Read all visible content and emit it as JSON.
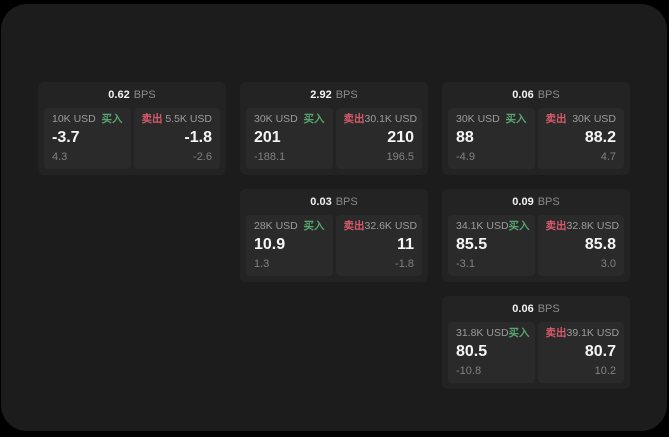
{
  "labels": {
    "bps_suffix": "BPS",
    "buy": "买入",
    "sell": "卖出"
  },
  "colors": {
    "buy_green": "#57a46f",
    "sell_red": "#d75a6b",
    "window_bg": "#1c1c1c",
    "card_bg": "#232323",
    "panel_bg": "#2a2a2a"
  },
  "cards": [
    {
      "bps": "0.62",
      "grid": {
        "row": 0,
        "col": 0
      },
      "buy": {
        "amount": "10K USD",
        "value": "-3.7",
        "delta": "4.3"
      },
      "sell": {
        "amount": "5.5K USD",
        "value": "-1.8",
        "delta": "-2.6"
      }
    },
    {
      "bps": "2.92",
      "grid": {
        "row": 0,
        "col": 1
      },
      "buy": {
        "amount": "30K USD",
        "value": "201",
        "delta": "-188.1"
      },
      "sell": {
        "amount": "30.1K USD",
        "value": "210",
        "delta": "196.5"
      }
    },
    {
      "bps": "0.06",
      "grid": {
        "row": 0,
        "col": 2
      },
      "buy": {
        "amount": "30K USD",
        "value": "88",
        "delta": "-4.9"
      },
      "sell": {
        "amount": "30K USD",
        "value": "88.2",
        "delta": "4.7"
      }
    },
    {
      "bps": "0.03",
      "grid": {
        "row": 1,
        "col": 1
      },
      "buy": {
        "amount": "28K USD",
        "value": "10.9",
        "delta": "1.3"
      },
      "sell": {
        "amount": "32.6K USD",
        "value": "11",
        "delta": "-1.8"
      }
    },
    {
      "bps": "0.09",
      "grid": {
        "row": 1,
        "col": 2
      },
      "buy": {
        "amount": "34.1K USD",
        "value": "85.5",
        "delta": "-3.1"
      },
      "sell": {
        "amount": "32.8K USD",
        "value": "85.8",
        "delta": "3.0"
      }
    },
    {
      "bps": "0.06",
      "grid": {
        "row": 2,
        "col": 2
      },
      "buy": {
        "amount": "31.8K USD",
        "value": "80.5",
        "delta": "-10.8"
      },
      "sell": {
        "amount": "39.1K USD",
        "value": "80.7",
        "delta": "10.2"
      }
    }
  ]
}
